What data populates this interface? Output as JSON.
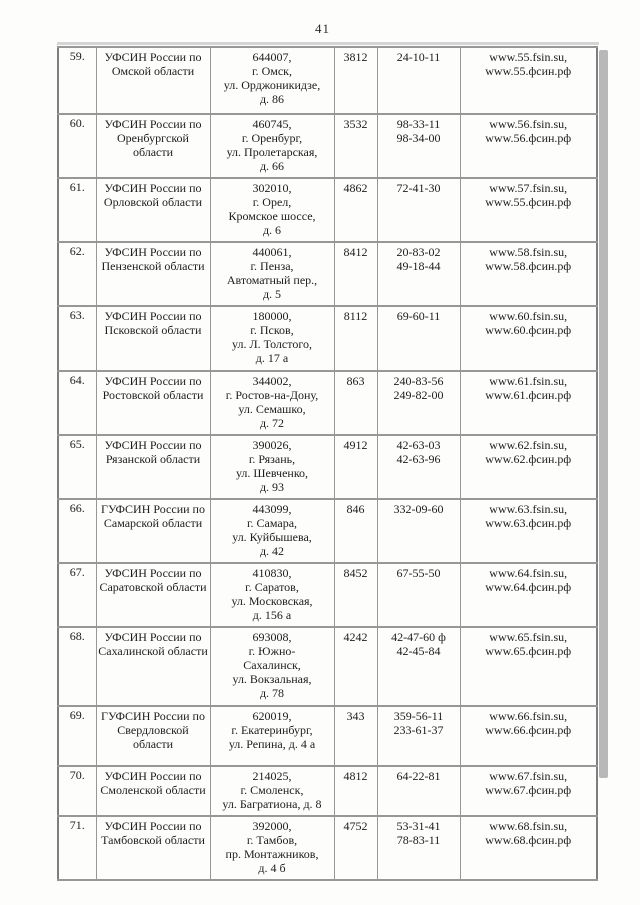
{
  "page": {
    "number": "41"
  },
  "colors": {
    "ink": "#1c1c1c",
    "border_gray": "#979797",
    "outer_border": "#7e7e7e",
    "scan_shadow": "#a6a6a6",
    "background": "#fdfdfc"
  },
  "table": {
    "columns": [
      "row-number",
      "organization",
      "address",
      "phone-code",
      "phones",
      "websites"
    ],
    "rows": [
      {
        "num": "59.",
        "name": [
          "УФСИН России по",
          "Омской области"
        ],
        "address": [
          "644007,",
          "г. Омск,",
          "ул. Орджоникидзе,",
          "д. 86"
        ],
        "code": "3812",
        "phones": [
          "24-10-11"
        ],
        "sites": [
          "www.55.fsin.su,",
          "www.55.фсин.рф"
        ]
      },
      {
        "num": "60.",
        "name": [
          "УФСИН России по",
          "Оренбургской",
          "области"
        ],
        "address": [
          "460745,",
          "г. Оренбург,",
          "ул. Пролетарская,",
          "д. 66"
        ],
        "code": "3532",
        "phones": [
          "98-33-11",
          "98-34-00"
        ],
        "sites": [
          "www.56.fsin.su,",
          "www.56.фсин.рф"
        ]
      },
      {
        "num": "61.",
        "name": [
          "УФСИН России по",
          "Орловской области"
        ],
        "address": [
          "302010,",
          "г. Орел,",
          "Кромское шоссе,",
          "д. 6"
        ],
        "code": "4862",
        "phones": [
          "72-41-30"
        ],
        "sites": [
          "www.57.fsin.su,",
          "www.55.фсин.рф"
        ]
      },
      {
        "num": "62.",
        "name": [
          "УФСИН России по",
          "Пензенской области"
        ],
        "address": [
          "440061,",
          "г. Пенза,",
          "Автоматный пер.,",
          "д. 5"
        ],
        "code": "8412",
        "phones": [
          "20-83-02",
          "49-18-44"
        ],
        "sites": [
          "www.58.fsin.su,",
          "www.58.фсин.рф"
        ]
      },
      {
        "num": "63.",
        "name": [
          "УФСИН России по",
          "Псковской области"
        ],
        "address": [
          "180000,",
          "г. Псков,",
          "ул. Л. Толстого,",
          "д. 17 а"
        ],
        "code": "8112",
        "phones": [
          "69-60-11"
        ],
        "sites": [
          "www.60.fsin.su,",
          "www.60.фсин.рф"
        ]
      },
      {
        "num": "64.",
        "name": [
          "УФСИН России по",
          "Ростовской области"
        ],
        "address": [
          "344002,",
          "г. Ростов-на-Дону,",
          "ул. Семашко,",
          "д. 72"
        ],
        "code": "863",
        "phones": [
          "240-83-56",
          "249-82-00"
        ],
        "sites": [
          "www.61.fsin.su,",
          "www.61.фсин.рф"
        ]
      },
      {
        "num": "65.",
        "name": [
          "УФСИН России по",
          "Рязанской области"
        ],
        "address": [
          "390026,",
          "г. Рязань,",
          "ул. Шевченко,",
          "д. 93"
        ],
        "code": "4912",
        "phones": [
          "42-63-03",
          "42-63-96"
        ],
        "sites": [
          "www.62.fsin.su,",
          "www.62.фсин.рф"
        ]
      },
      {
        "num": "66.",
        "name": [
          "ГУФСИН России по",
          "Самарской области"
        ],
        "address": [
          "443099,",
          "г. Самара,",
          "ул. Куйбышева,",
          "д. 42"
        ],
        "code": "846",
        "phones": [
          "332-09-60"
        ],
        "sites": [
          "www.63.fsin.su,",
          "www.63.фсин.рф"
        ]
      },
      {
        "num": "67.",
        "name": [
          "УФСИН России по",
          "Саратовской области"
        ],
        "address": [
          "410830,",
          "г. Саратов,",
          "ул. Московская,",
          "д. 156 а"
        ],
        "code": "8452",
        "phones": [
          "67-55-50"
        ],
        "sites": [
          "www.64.fsin.su,",
          "www.64.фсин.рф"
        ]
      },
      {
        "num": "68.",
        "name": [
          "УФСИН России по",
          "Сахалинской области"
        ],
        "address": [
          "693008,",
          "г. Южно-",
          "Сахалинск,",
          "ул. Вокзальная,",
          "д. 78"
        ],
        "code": "4242",
        "phones": [
          "42-47-60 ф",
          "42-45-84"
        ],
        "sites": [
          "www.65.fsin.su,",
          "www.65.фсин.рф"
        ]
      },
      {
        "num": "69.",
        "name": [
          "ГУФСИН России по",
          "Свердловской",
          "области"
        ],
        "address": [
          "620019,",
          "г. Екатеринбург,",
          "ул. Репина, д. 4 а"
        ],
        "code": "343",
        "phones": [
          "359-56-11",
          "233-61-37"
        ],
        "sites": [
          "www.66.fsin.su,",
          "www.66.фсин.рф"
        ]
      },
      {
        "num": "70.",
        "name": [
          "УФСИН России по",
          "Смоленской области"
        ],
        "address": [
          "214025,",
          "г. Смоленск,",
          "ул. Багратиона, д. 8"
        ],
        "code": "4812",
        "phones": [
          "64-22-81"
        ],
        "sites": [
          "www.67.fsin.su,",
          "www.67.фсин.рф"
        ]
      },
      {
        "num": "71.",
        "name": [
          "УФСИН России по",
          "Тамбовской области"
        ],
        "address": [
          "392000,",
          "г. Тамбов,",
          "пр. Монтажников,",
          "д. 4 б"
        ],
        "code": "4752",
        "phones": [
          "53-31-41",
          "78-83-11"
        ],
        "sites": [
          "www.68.fsin.su,",
          "www.68.фсин.рф"
        ]
      }
    ]
  }
}
